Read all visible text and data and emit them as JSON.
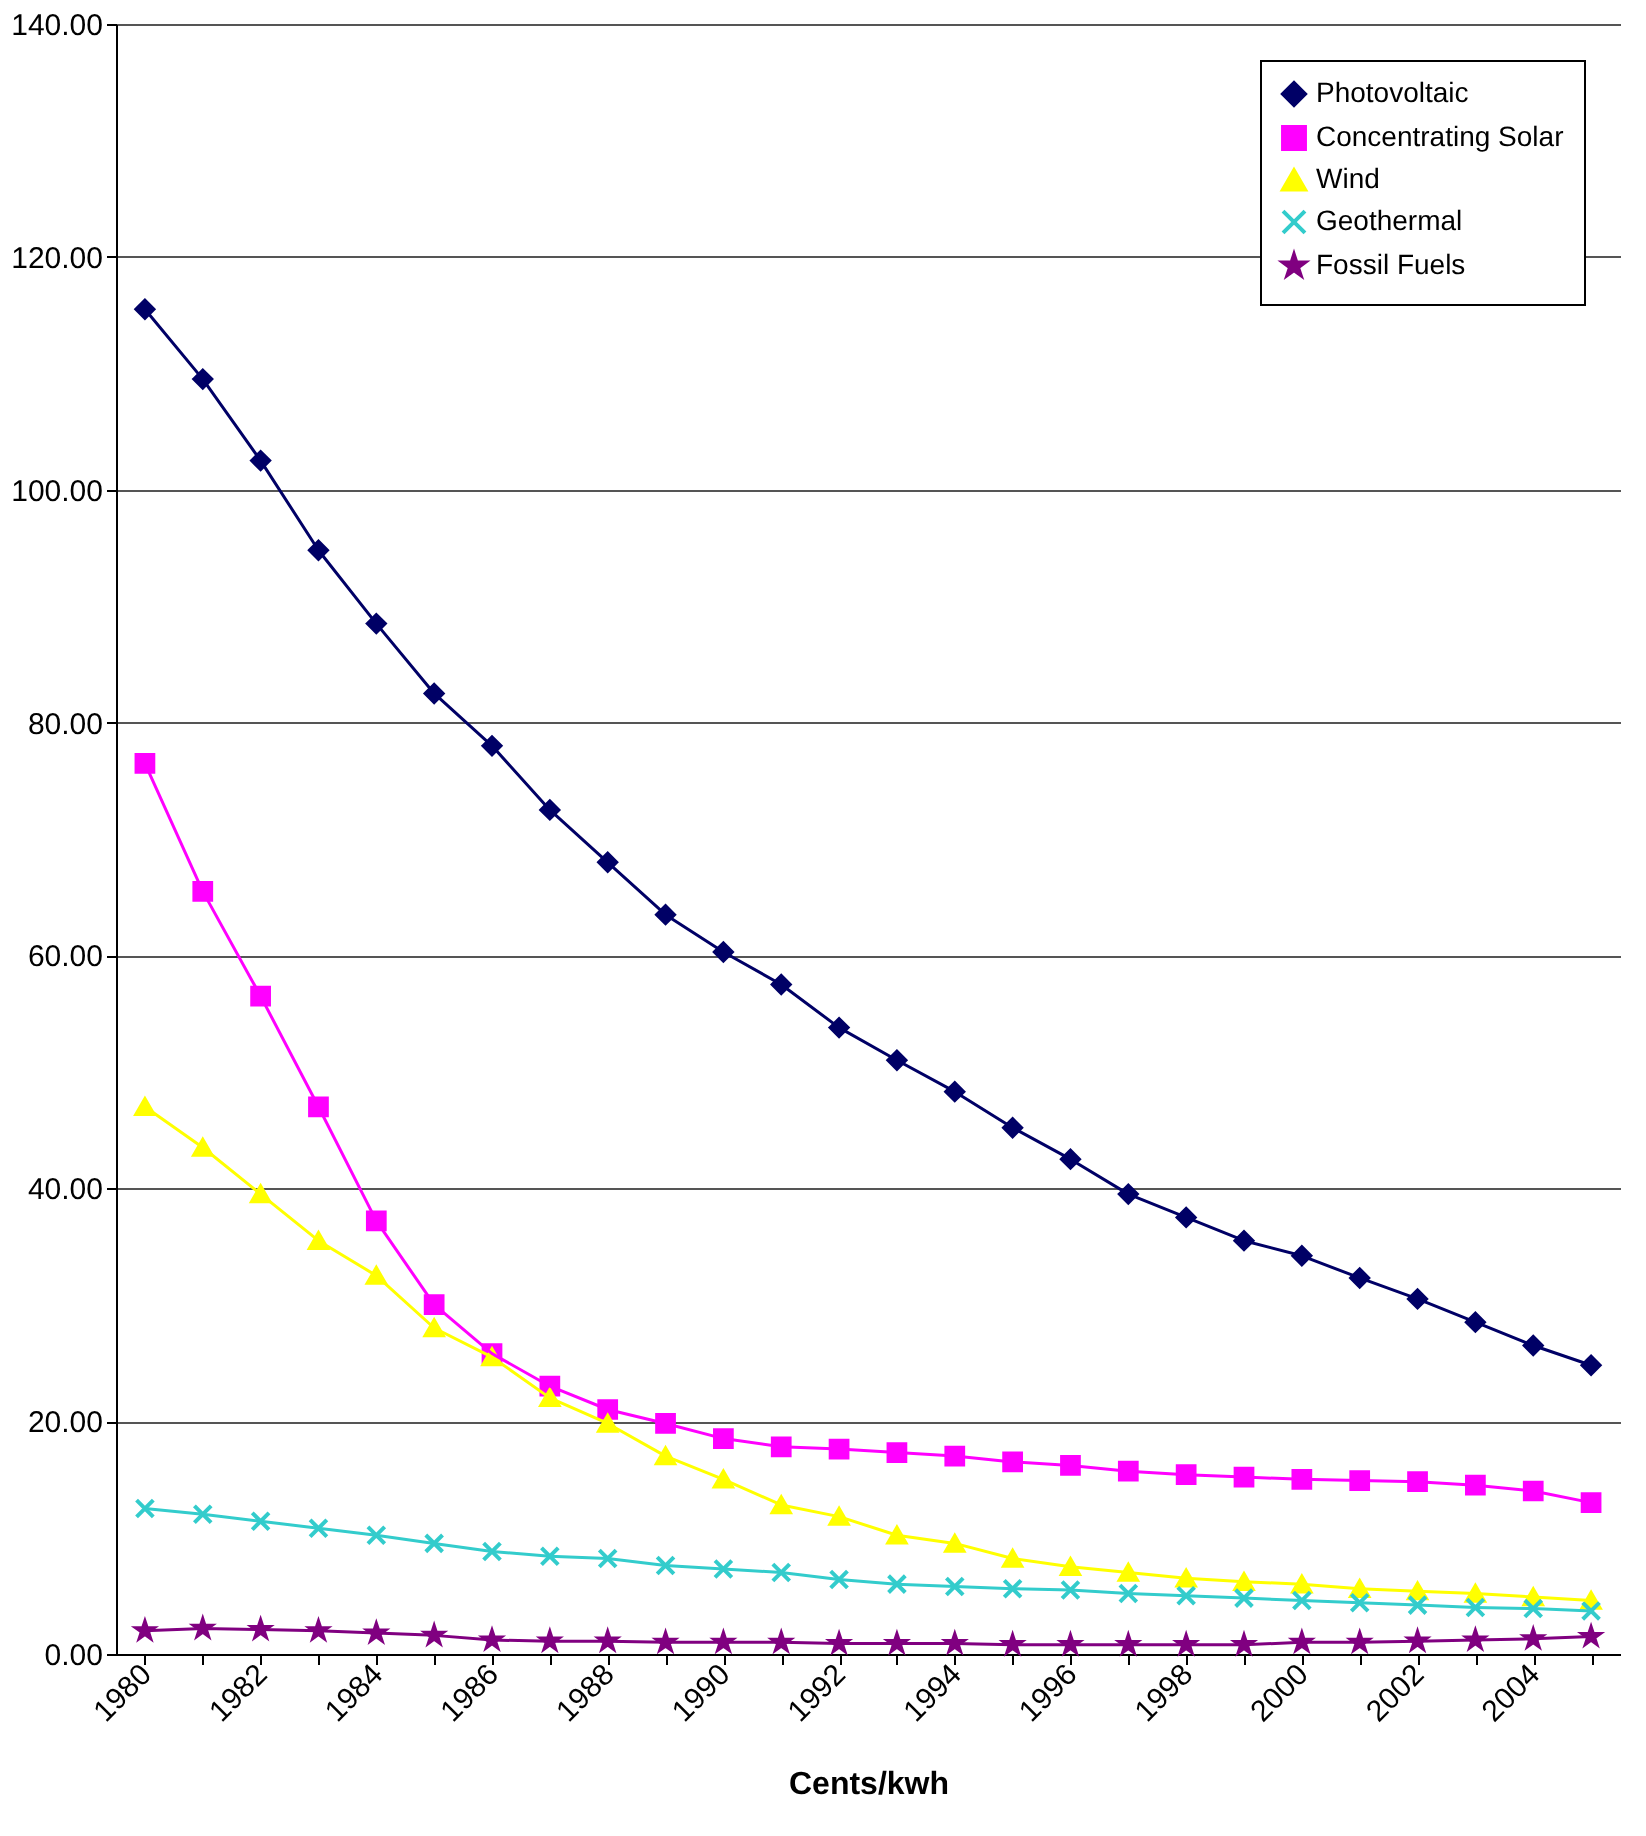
{
  "chart_data": {
    "type": "line",
    "xlabel": "Cents/kwh",
    "categories": [
      "1980",
      null,
      "1982",
      null,
      "1984",
      null,
      "1986",
      null,
      "1988",
      null,
      "1990",
      null,
      "1992",
      null,
      "1994",
      null,
      "1996",
      null,
      "1998",
      null,
      "2000",
      null,
      "2002",
      null,
      "2004",
      null
    ],
    "ylim": [
      0,
      140
    ],
    "yticks": [
      {
        "value": 0,
        "label": "0.00"
      },
      {
        "value": 20,
        "label": "20.00"
      },
      {
        "value": 40,
        "label": "40.00"
      },
      {
        "value": 60,
        "label": "60.00"
      },
      {
        "value": 80,
        "label": "80.00"
      },
      {
        "value": 100,
        "label": "100.00"
      },
      {
        "value": 120,
        "label": "120.00"
      },
      {
        "value": 140,
        "label": "140.00"
      }
    ],
    "grid": "y",
    "legend": "top right",
    "line_style": "solid",
    "series": [
      {
        "name": "Photovoltaic",
        "color": "#000066",
        "marker": "diamond",
        "values": [
          115.5,
          109.5,
          102.5,
          94.8,
          88.5,
          82.5,
          78,
          72.5,
          68,
          63.5,
          60.3,
          57.5,
          53.8,
          51,
          48.3,
          45.2,
          42.5,
          39.5,
          37.5,
          35.5,
          34.2,
          32.3,
          30.5,
          28.5,
          26.5,
          24.8
        ]
      },
      {
        "name": "Concentrating Solar",
        "color": "#ff00ff",
        "marker": "square",
        "values": [
          76.5,
          65.5,
          56.5,
          47,
          37.2,
          30,
          25.8,
          23,
          21,
          19.8,
          18.5,
          17.8,
          17.6,
          17.3,
          17,
          16.5,
          16.2,
          15.7,
          15.4,
          15.2,
          15,
          14.9,
          14.8,
          14.5,
          14,
          13
        ]
      },
      {
        "name": "Wind",
        "color": "#ffff00",
        "marker": "triangle",
        "values": [
          47,
          43.5,
          39.5,
          35.5,
          32.5,
          28,
          25.5,
          22,
          19.8,
          17,
          15,
          12.8,
          11.8,
          10.2,
          9.5,
          8.2,
          7.5,
          7,
          6.5,
          6.2,
          6,
          5.6,
          5.4,
          5.2,
          4.9,
          4.6
        ]
      },
      {
        "name": "Geothermal",
        "color": "#33cccc",
        "marker": "cross",
        "values": [
          12.5,
          12,
          11.4,
          10.8,
          10.2,
          9.5,
          8.8,
          8.4,
          8.2,
          7.6,
          7.3,
          7,
          6.4,
          6,
          5.8,
          5.6,
          5.5,
          5.2,
          5,
          4.8,
          4.6,
          4.4,
          4.2,
          4,
          3.9,
          3.7
        ]
      },
      {
        "name": "Fossil Fuels",
        "color": "#800080",
        "marker": "star",
        "values": [
          2,
          2.2,
          2.1,
          2,
          1.8,
          1.6,
          1.2,
          1.1,
          1.1,
          1,
          1,
          1,
          0.9,
          0.9,
          0.9,
          0.8,
          0.8,
          0.8,
          0.8,
          0.8,
          1,
          1,
          1.1,
          1.2,
          1.3,
          1.5
        ]
      }
    ]
  }
}
